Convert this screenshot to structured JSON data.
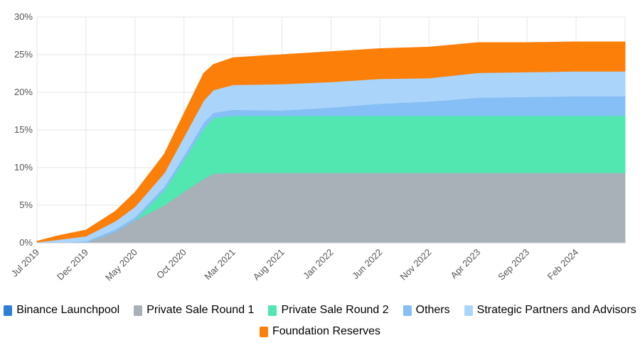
{
  "chart_data": {
    "type": "area",
    "stacked": true,
    "y_axis": {
      "min": 0,
      "max": 30,
      "ticks": [
        "0%",
        "5%",
        "10%",
        "15%",
        "20%",
        "25%",
        "30%"
      ]
    },
    "x_tick_labels": [
      "Jul 2019",
      "Dec 2019",
      "May 2020",
      "Oct 2020",
      "Mar 2021",
      "Aug 2021",
      "Jan 2022",
      "Jun 2022",
      "Nov 2022",
      "Apr 2023",
      "Sep 2023",
      "Feb 2024"
    ],
    "x": [
      "Jul 2019",
      "Sep 2019",
      "Dec 2019",
      "Mar 2020",
      "May 2020",
      "Aug 2020",
      "Oct 2020",
      "Dec 2020",
      "Jan 2021",
      "Mar 2021",
      "Aug 2021",
      "Jan 2022",
      "Jun 2022",
      "Nov 2022",
      "Apr 2023",
      "Sep 2023",
      "Feb 2024",
      "Jul 2024"
    ],
    "grid": true,
    "legend_position": "bottom",
    "series": [
      {
        "name": "Binance Launchpool",
        "color": "#2f7ed8",
        "values": [
          0,
          0,
          0,
          0,
          0,
          0,
          0,
          0,
          0,
          0,
          0,
          0,
          0,
          0,
          0,
          0,
          0,
          0
        ]
      },
      {
        "name": "Private Sale Round 1",
        "color": "#a8b0b8",
        "values": [
          0,
          0,
          0,
          1.5,
          3.0,
          5.0,
          6.8,
          8.5,
          9.2,
          9.3,
          9.3,
          9.3,
          9.3,
          9.3,
          9.3,
          9.3,
          9.3,
          9.3
        ]
      },
      {
        "name": "Private Sale Round 2",
        "color": "#52e6b0",
        "values": [
          0,
          0,
          0,
          0,
          0,
          2.0,
          4.2,
          6.7,
          7.4,
          7.6,
          7.6,
          7.6,
          7.6,
          7.6,
          7.6,
          7.6,
          7.6,
          7.6
        ]
      },
      {
        "name": "Others",
        "color": "#86bff5",
        "values": [
          0,
          0,
          0.2,
          0.3,
          0.4,
          0.5,
          0.6,
          0.8,
          0.7,
          0.8,
          0.7,
          1.1,
          1.6,
          1.9,
          2.4,
          2.5,
          2.6,
          2.6
        ]
      },
      {
        "name": "Strategic Partners and Advisors",
        "color": "#aad4fa",
        "values": [
          0.1,
          0.4,
          0.7,
          1.1,
          1.4,
          1.8,
          2.5,
          2.9,
          3.0,
          3.3,
          3.5,
          3.4,
          3.3,
          3.1,
          3.3,
          3.3,
          3.3,
          3.3
        ]
      },
      {
        "name": "Foundation Reserves",
        "color": "#fb7f08",
        "values": [
          0.1,
          0.5,
          0.8,
          1.3,
          1.9,
          2.5,
          3.1,
          3.6,
          3.4,
          3.6,
          3.9,
          4.0,
          4.0,
          4.1,
          4.0,
          3.9,
          3.9,
          3.9
        ]
      }
    ]
  }
}
